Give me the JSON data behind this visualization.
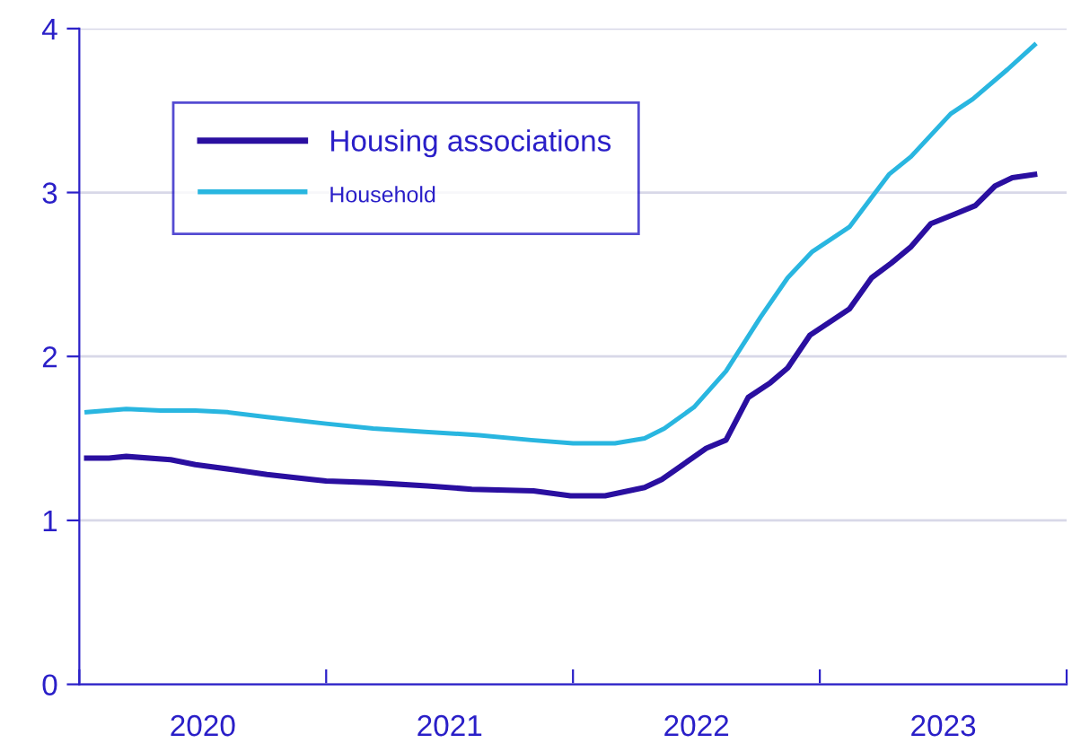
{
  "chart_data": {
    "type": "line",
    "series": [
      {
        "name": "Housing associations",
        "color": "#2a0fa0",
        "x": [
          2020.03,
          2020.12,
          2020.19,
          2020.37,
          2020.47,
          2020.62,
          2020.76,
          2020.94,
          2021.0,
          2021.19,
          2021.41,
          2021.59,
          2021.84,
          2021.99,
          2022.13,
          2022.29,
          2022.36,
          2022.54,
          2022.62,
          2022.71,
          2022.8,
          2022.87,
          2022.96,
          2023.03,
          2023.12,
          2023.21,
          2023.29,
          2023.37,
          2023.45,
          2023.55,
          2023.63,
          2023.71,
          2023.78,
          2023.87
        ],
        "values": [
          1.38,
          1.38,
          1.39,
          1.37,
          1.34,
          1.31,
          1.28,
          1.25,
          1.24,
          1.23,
          1.21,
          1.19,
          1.18,
          1.15,
          1.15,
          1.2,
          1.25,
          1.44,
          1.49,
          1.75,
          1.84,
          1.93,
          2.13,
          2.2,
          2.29,
          2.48,
          2.57,
          2.67,
          2.81,
          2.87,
          2.92,
          3.04,
          3.09,
          3.11
        ]
      },
      {
        "name": "Household",
        "color": "#29b6e0",
        "x": [
          2020.03,
          2020.19,
          2020.33,
          2020.47,
          2020.6,
          2020.76,
          2021.0,
          2021.19,
          2021.4,
          2021.62,
          2021.83,
          2022.0,
          2022.17,
          2022.29,
          2022.37,
          2022.49,
          2022.62,
          2022.76,
          2022.87,
          2022.97,
          2023.12,
          2023.21,
          2023.28,
          2023.37,
          2023.53,
          2023.62,
          2023.76,
          2023.87
        ],
        "values": [
          1.66,
          1.68,
          1.67,
          1.67,
          1.66,
          1.63,
          1.59,
          1.56,
          1.54,
          1.52,
          1.49,
          1.47,
          1.47,
          1.5,
          1.56,
          1.69,
          1.91,
          2.24,
          2.48,
          2.64,
          2.79,
          2.97,
          3.11,
          3.22,
          3.48,
          3.57,
          3.75,
          3.9
        ]
      }
    ],
    "xlim": [
      2020,
      2024
    ],
    "xticks": [
      {
        "value": 2020,
        "label": null
      },
      {
        "value": 2020.5,
        "label": "2020"
      },
      {
        "value": 2021,
        "label": null
      },
      {
        "value": 2021.5,
        "label": "2021"
      },
      {
        "value": 2022,
        "label": null
      },
      {
        "value": 2022.5,
        "label": "2022"
      },
      {
        "value": 2023,
        "label": null
      },
      {
        "value": 2023.5,
        "label": "2023"
      },
      {
        "value": 2024,
        "label": null
      }
    ],
    "ylim": [
      0,
      4
    ],
    "yticks": [
      0,
      1,
      2,
      3,
      4
    ],
    "grid": "y",
    "legend": "top left",
    "line_style": "solid",
    "marker": "none"
  }
}
